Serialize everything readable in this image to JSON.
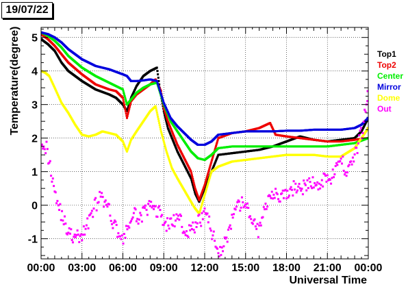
{
  "date_label": "19/07/22",
  "chart_data": {
    "type": "scatter",
    "title": "",
    "xlabel": "Universal Time",
    "ylabel": "Temperature(degree)",
    "xlim": [
      0,
      24
    ],
    "ylim": [
      -1.6,
      5.3
    ],
    "x_ticks": [
      0,
      3,
      6,
      9,
      12,
      15,
      18,
      21,
      24
    ],
    "x_tick_labels": [
      "00:00",
      "03:00",
      "06:00",
      "09:00",
      "12:00",
      "15:00",
      "18:00",
      "21:00",
      "00:00"
    ],
    "y_ticks": [
      -1,
      0,
      1,
      2,
      3,
      4,
      5
    ],
    "y_tick_labels": [
      "-1",
      "0",
      "1",
      "2",
      "3",
      "4",
      "5"
    ],
    "grid": true,
    "legend_position": "right",
    "series": [
      {
        "name": "Top1",
        "color": "#000000",
        "x": [
          0,
          0.5,
          1,
          1.5,
          2,
          3,
          4,
          5,
          5.5,
          6,
          6.3,
          6.6,
          7,
          7.5,
          8,
          8.5,
          8.7,
          9,
          9.3,
          9.6,
          10,
          10.5,
          11,
          11.3,
          11.6,
          12,
          12.5,
          13,
          14,
          15,
          16,
          17,
          18,
          19,
          20,
          21,
          22,
          23,
          23.5,
          24
        ],
        "y": [
          4.95,
          4.8,
          4.6,
          4.25,
          4.0,
          3.7,
          3.45,
          3.3,
          3.2,
          3.0,
          2.8,
          3.2,
          3.55,
          3.85,
          4.0,
          4.1,
          3.5,
          2.8,
          2.3,
          2.0,
          1.6,
          1.2,
          0.8,
          0.35,
          0.1,
          0.5,
          1.0,
          1.5,
          1.55,
          1.6,
          1.65,
          1.75,
          1.9,
          2.05,
          1.95,
          1.9,
          1.95,
          2.0,
          2.2,
          2.6
        ]
      },
      {
        "name": "Top2",
        "color": "#ee0000",
        "x": [
          0,
          0.5,
          1,
          1.5,
          2,
          3,
          4,
          5,
          5.5,
          6,
          6.3,
          6.6,
          7,
          7.5,
          8,
          8.4,
          8.8,
          9,
          9.3,
          9.6,
          10,
          10.5,
          11,
          11.3,
          11.6,
          12,
          12.5,
          13,
          14,
          15,
          16,
          16.8,
          17.2,
          18,
          19,
          20,
          21,
          22,
          23,
          24
        ],
        "y": [
          5.1,
          4.95,
          4.75,
          4.5,
          4.25,
          3.9,
          3.6,
          3.45,
          3.4,
          3.2,
          2.6,
          3.1,
          3.3,
          3.45,
          3.6,
          3.75,
          3.4,
          2.9,
          2.5,
          2.2,
          1.8,
          1.4,
          1.0,
          0.5,
          0.15,
          0.6,
          1.3,
          2.0,
          2.15,
          2.2,
          2.3,
          2.45,
          2.1,
          2.05,
          2.0,
          1.95,
          1.9,
          1.9,
          1.95,
          2.0
        ]
      },
      {
        "name": "Center",
        "color": "#00ee00",
        "x": [
          0,
          0.5,
          1,
          1.5,
          2,
          3,
          4,
          5,
          5.5,
          6,
          6.3,
          6.7,
          7,
          7.5,
          8,
          8.5,
          9,
          9.5,
          10,
          10.5,
          11,
          11.5,
          12,
          12.5,
          13,
          14,
          15,
          16,
          17,
          18,
          19,
          20,
          21,
          22,
          23,
          24
        ],
        "y": [
          5.15,
          5.05,
          4.9,
          4.7,
          4.45,
          4.1,
          3.85,
          3.65,
          3.55,
          3.45,
          3.0,
          3.2,
          3.35,
          3.5,
          3.6,
          3.65,
          3.0,
          2.5,
          2.2,
          1.9,
          1.6,
          1.4,
          1.35,
          1.5,
          1.7,
          1.75,
          1.75,
          1.75,
          1.75,
          1.75,
          1.75,
          1.75,
          1.75,
          1.8,
          1.85,
          2.0
        ]
      },
      {
        "name": "Mirror",
        "color": "#0000dd",
        "x": [
          0,
          0.5,
          1,
          1.5,
          2,
          3,
          4,
          5,
          6,
          6.3,
          6.6,
          7,
          7.5,
          8,
          8.5,
          9,
          9.5,
          10,
          10.5,
          11,
          11.5,
          12,
          12.5,
          13,
          14,
          15,
          16,
          17,
          18,
          19,
          20,
          21,
          22,
          23,
          23.5,
          24
        ],
        "y": [
          5.15,
          5.1,
          5.0,
          4.85,
          4.65,
          4.35,
          4.15,
          4.05,
          3.9,
          3.85,
          3.7,
          3.7,
          3.72,
          3.75,
          3.7,
          3.05,
          2.6,
          2.35,
          2.15,
          1.95,
          1.8,
          1.8,
          1.9,
          2.1,
          2.15,
          2.2,
          2.2,
          2.2,
          2.22,
          2.22,
          2.25,
          2.25,
          2.25,
          2.3,
          2.4,
          2.6
        ]
      },
      {
        "name": "Dome",
        "color": "#ffff00",
        "x": [
          0,
          0.3,
          0.6,
          1,
          1.5,
          2,
          2.5,
          3,
          3.5,
          4,
          4.5,
          5,
          5.5,
          6,
          6.3,
          6.6,
          7,
          7.5,
          8,
          8.4,
          8.8,
          9.2,
          9.6,
          10,
          10.5,
          11,
          11.3,
          11.6,
          12,
          12.5,
          13,
          14,
          15,
          16,
          17,
          18,
          19,
          20,
          21,
          22,
          23,
          24
        ],
        "y": [
          4.0,
          3.95,
          3.85,
          3.5,
          3.05,
          2.75,
          2.4,
          2.1,
          2.05,
          2.1,
          2.2,
          2.15,
          2.1,
          1.9,
          1.6,
          1.95,
          2.2,
          2.5,
          2.8,
          2.95,
          2.2,
          1.6,
          1.1,
          0.8,
          0.45,
          0.1,
          -0.1,
          -0.25,
          0.3,
          1.0,
          1.15,
          1.3,
          1.35,
          1.4,
          1.45,
          1.5,
          1.5,
          1.5,
          1.45,
          1.45,
          1.7,
          2.3
        ]
      },
      {
        "name": "Out",
        "color": "#ff00ff",
        "x": [
          0,
          0.4,
          0.8,
          1.2,
          1.6,
          2,
          2.4,
          2.8,
          3.2,
          3.6,
          4,
          4.3,
          4.6,
          5,
          5.4,
          5.8,
          6.1,
          6.4,
          6.8,
          7.2,
          7.6,
          8,
          8.4,
          8.8,
          9.2,
          9.6,
          10,
          10.4,
          10.8,
          11.2,
          11.6,
          12,
          12.4,
          12.8,
          13.2,
          13.6,
          14,
          14.4,
          14.8,
          15.2,
          15.6,
          16,
          16.4,
          16.8,
          17.2,
          17.6,
          18,
          18.4,
          18.8,
          19.2,
          19.6,
          20,
          20.4,
          20.8,
          21.2,
          21.6,
          22,
          22.4,
          22.8,
          23.2,
          23.6,
          24
        ],
        "y": [
          2.0,
          1.7,
          0.9,
          0.1,
          -0.4,
          -0.8,
          -1.0,
          -0.95,
          -0.8,
          -0.3,
          0.0,
          0.25,
          0.1,
          -0.2,
          -0.6,
          -0.9,
          -1.05,
          -0.6,
          -0.3,
          -0.35,
          -0.2,
          -0.05,
          -0.1,
          -0.3,
          -0.6,
          -0.5,
          -0.4,
          -0.6,
          -0.8,
          -0.7,
          -0.5,
          -0.2,
          -0.6,
          -1.2,
          -1.35,
          -1.0,
          -0.5,
          -0.1,
          0.1,
          -0.2,
          -0.5,
          -0.8,
          -0.1,
          0.4,
          0.4,
          0.2,
          0.3,
          0.45,
          0.6,
          0.5,
          0.6,
          0.7,
          0.5,
          0.9,
          0.8,
          1.0,
          1.4,
          1.0,
          1.3,
          1.7,
          2.3,
          3.4
        ]
      }
    ]
  }
}
